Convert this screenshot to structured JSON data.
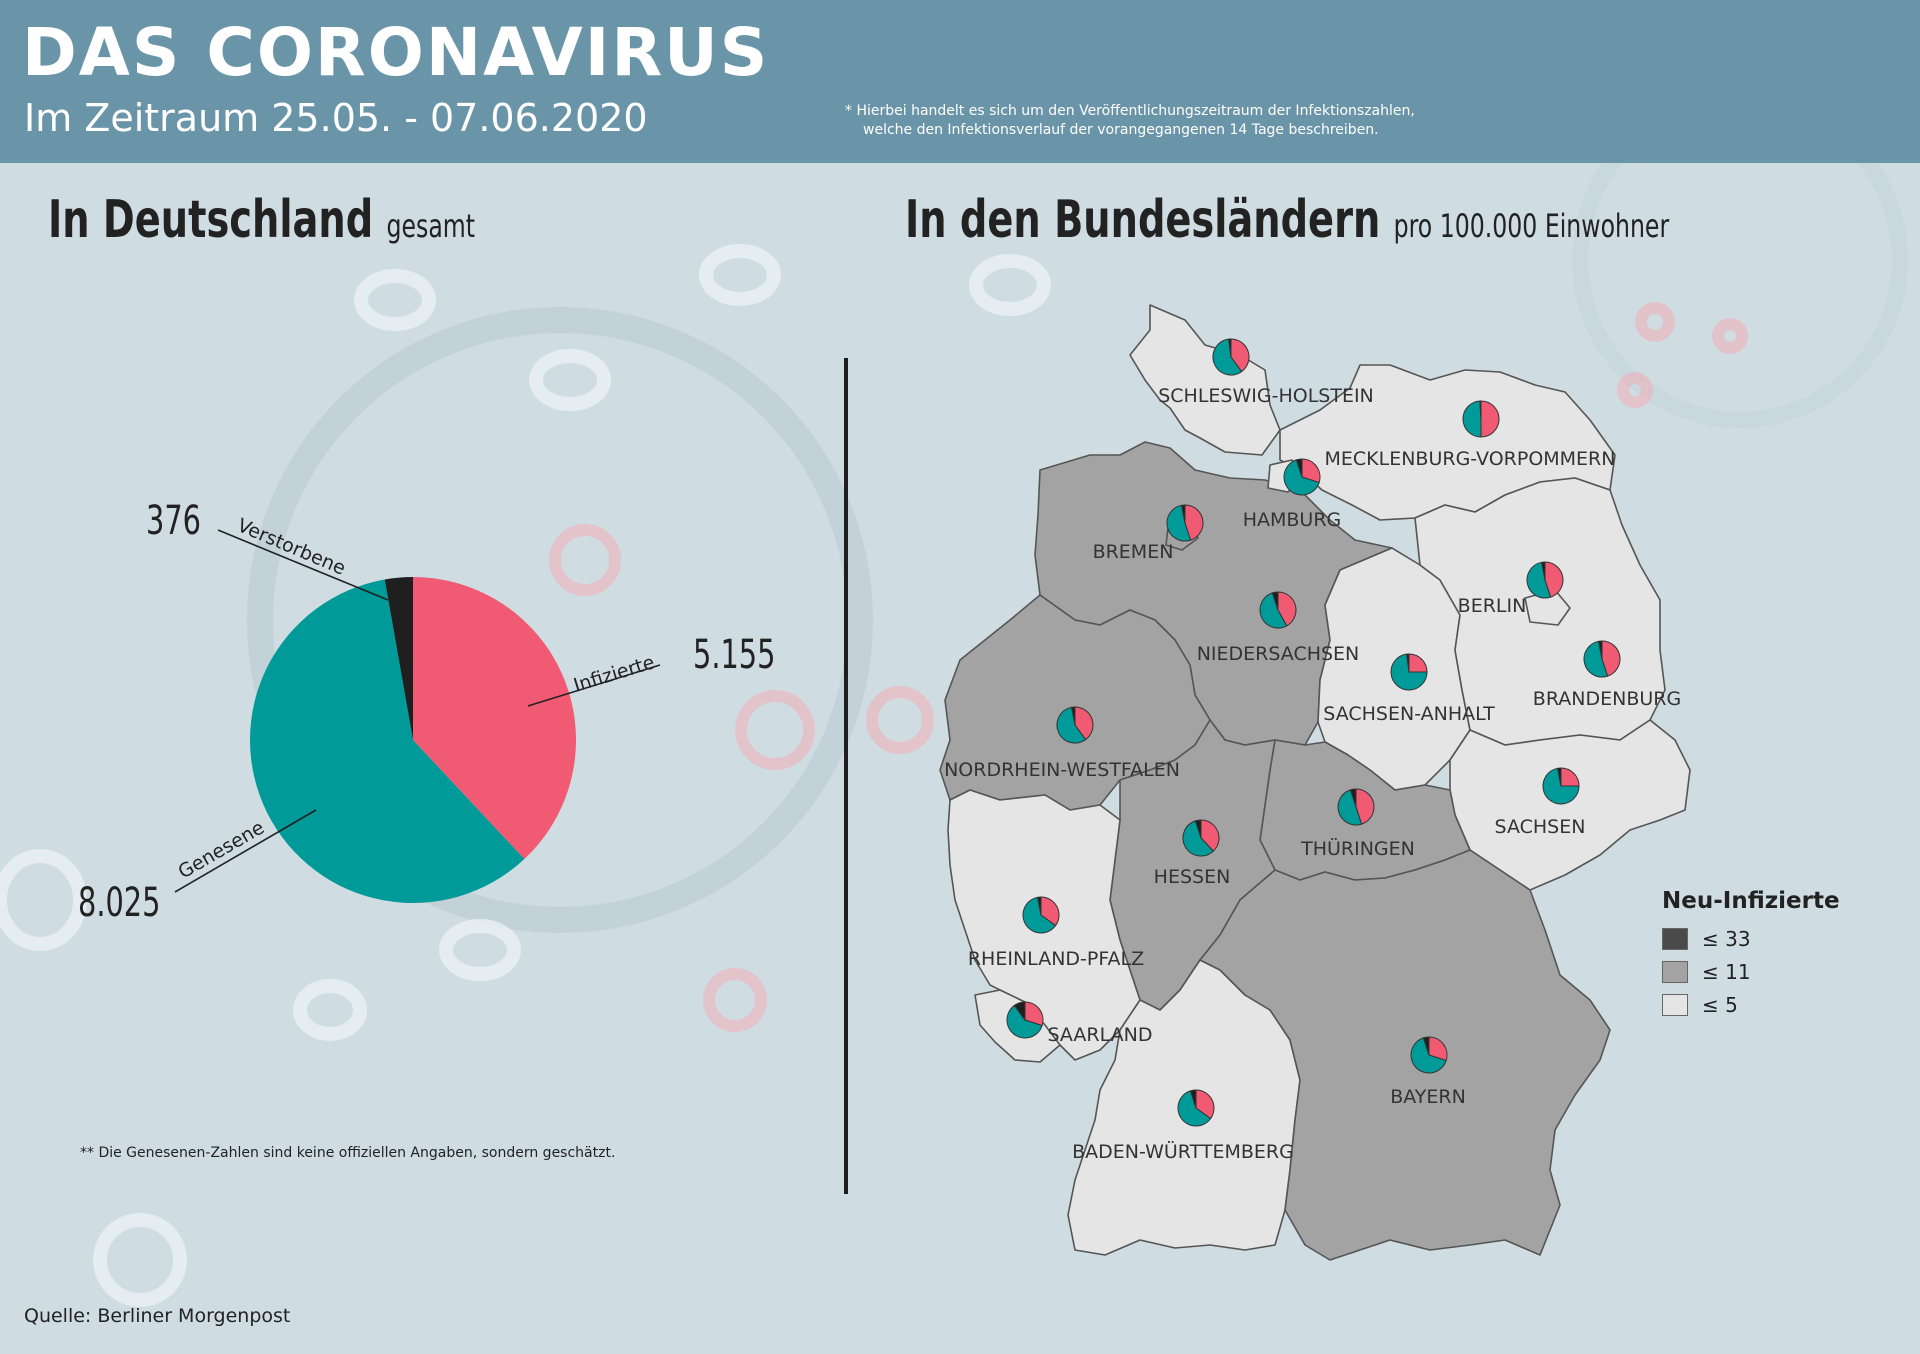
{
  "header": {
    "title": "DAS CORONAVIRUS",
    "subtitle": "Im Zeitraum 25.05. - 07.06.2020",
    "note_line1": "* Hierbei handelt es sich um den Veröffentlichungszeitraum der Infektionszahlen,",
    "note_line2": "welche den Infektionsverlauf der vorangegangenen 14 Tage beschreiben."
  },
  "left": {
    "heading": "In Deutschland",
    "heading_small": "gesamt",
    "footnote": "** Die Genesenen-Zahlen sind keine offiziellen Angaben, sondern geschätzt."
  },
  "right": {
    "heading": "In den Bundesländern",
    "heading_small": "pro 100.000 Einwohner"
  },
  "colors": {
    "infected": "#f05a72",
    "recovered": "#009b99",
    "deceased": "#1f1f1f",
    "cat_high": "#4a4a4a",
    "cat_mid": "#a3a3a3",
    "cat_low": "#e5e5e6"
  },
  "chart_data": [
    {
      "type": "pie",
      "slices": [
        {
          "label": "Infizierte",
          "value": 5155,
          "display": "5.155",
          "color": "#f05a72"
        },
        {
          "label": "Genesene",
          "value": 8025,
          "display": "8.025",
          "color": "#009b99"
        },
        {
          "label": "Verstorbene",
          "value": 376,
          "display": "376",
          "color": "#1f1f1f"
        }
      ]
    },
    {
      "type": "choropleth",
      "legend_title": "Neu-Infizierte",
      "legend": [
        {
          "label": "≤ 33",
          "category": "high",
          "color": "#4a4a4a"
        },
        {
          "label": "≤ 11",
          "category": "mid",
          "color": "#a3a3a3"
        },
        {
          "label": "≤ 5",
          "category": "low",
          "color": "#e5e5e6"
        }
      ],
      "states": [
        {
          "name": "SCHLESWIG-HOLSTEIN",
          "category": "low",
          "pie": {
            "infected": 0.4,
            "recovered": 0.58,
            "deceased": 0.02
          }
        },
        {
          "name": "MECKLENBURG-VORPOMMERN",
          "category": "low",
          "pie": {
            "infected": 0.5,
            "recovered": 0.49,
            "deceased": 0.01
          }
        },
        {
          "name": "HAMBURG",
          "category": "low",
          "pie": {
            "infected": 0.3,
            "recovered": 0.65,
            "deceased": 0.05
          }
        },
        {
          "name": "BREMEN",
          "category": "mid",
          "pie": {
            "infected": 0.45,
            "recovered": 0.52,
            "deceased": 0.03
          }
        },
        {
          "name": "NIEDERSACHSEN",
          "category": "mid",
          "pie": {
            "infected": 0.42,
            "recovered": 0.53,
            "deceased": 0.05
          }
        },
        {
          "name": "BERLIN",
          "category": "low",
          "pie": {
            "infected": 0.45,
            "recovered": 0.52,
            "deceased": 0.03
          }
        },
        {
          "name": "SACHSEN-ANHALT",
          "category": "low",
          "pie": {
            "infected": 0.25,
            "recovered": 0.73,
            "deceased": 0.02
          }
        },
        {
          "name": "BRANDENBURG",
          "category": "low",
          "pie": {
            "infected": 0.45,
            "recovered": 0.52,
            "deceased": 0.03
          }
        },
        {
          "name": "NORDRHEIN-WESTFALEN",
          "category": "mid",
          "pie": {
            "infected": 0.4,
            "recovered": 0.57,
            "deceased": 0.03
          }
        },
        {
          "name": "SACHSEN",
          "category": "low",
          "pie": {
            "infected": 0.25,
            "recovered": 0.72,
            "deceased": 0.03
          }
        },
        {
          "name": "THÜRINGEN",
          "category": "mid",
          "pie": {
            "infected": 0.45,
            "recovered": 0.5,
            "deceased": 0.05
          }
        },
        {
          "name": "HESSEN",
          "category": "mid",
          "pie": {
            "infected": 0.38,
            "recovered": 0.57,
            "deceased": 0.05
          }
        },
        {
          "name": "RHEINLAND-PFALZ",
          "category": "low",
          "pie": {
            "infected": 0.35,
            "recovered": 0.62,
            "deceased": 0.03
          }
        },
        {
          "name": "SAARLAND",
          "category": "low",
          "pie": {
            "infected": 0.3,
            "recovered": 0.6,
            "deceased": 0.1
          }
        },
        {
          "name": "BAYERN",
          "category": "mid",
          "pie": {
            "infected": 0.3,
            "recovered": 0.65,
            "deceased": 0.05
          }
        },
        {
          "name": "BADEN-WÜRTTEMBERG",
          "category": "low",
          "pie": {
            "infected": 0.35,
            "recovered": 0.6,
            "deceased": 0.05
          }
        }
      ]
    }
  ],
  "source": "Quelle: Berliner Morgenpost"
}
